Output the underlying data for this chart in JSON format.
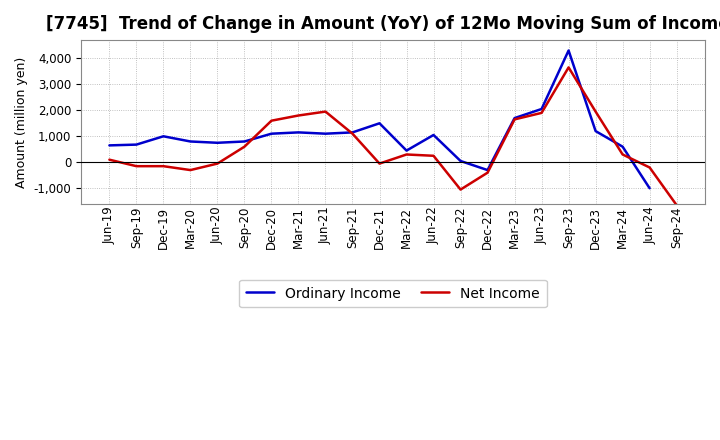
{
  "title": "[7745]  Trend of Change in Amount (YoY) of 12Mo Moving Sum of Incomes",
  "ylabel": "Amount (million yen)",
  "x_labels": [
    "Jun-19",
    "Sep-19",
    "Dec-19",
    "Mar-20",
    "Jun-20",
    "Sep-20",
    "Dec-20",
    "Mar-21",
    "Jun-21",
    "Sep-21",
    "Dec-21",
    "Mar-22",
    "Jun-22",
    "Sep-22",
    "Dec-22",
    "Mar-23",
    "Jun-23",
    "Sep-23",
    "Dec-23",
    "Mar-24",
    "Jun-24",
    "Sep-24"
  ],
  "ordinary_income": [
    650,
    680,
    1000,
    800,
    750,
    800,
    1100,
    1150,
    1100,
    1150,
    1500,
    450,
    1050,
    50,
    -300,
    1700,
    2050,
    4300,
    1200,
    600,
    -1000,
    null
  ],
  "net_income": [
    100,
    -150,
    -150,
    -300,
    -50,
    600,
    1600,
    1800,
    1950,
    1100,
    -50,
    300,
    250,
    -1050,
    -400,
    1650,
    1900,
    3650,
    1950,
    300,
    -200,
    -1650
  ],
  "ordinary_income_color": "#0000cc",
  "net_income_color": "#cc0000",
  "line_width": 1.8,
  "ylim": [
    -1600,
    4700
  ],
  "yticks": [
    -1000,
    0,
    1000,
    2000,
    3000,
    4000
  ],
  "grid_color": "#999999",
  "background_color": "#ffffff",
  "plot_bg_color": "#ffffff",
  "legend_labels": [
    "Ordinary Income",
    "Net Income"
  ],
  "title_fontsize": 12,
  "axis_fontsize": 9,
  "tick_fontsize": 8.5
}
